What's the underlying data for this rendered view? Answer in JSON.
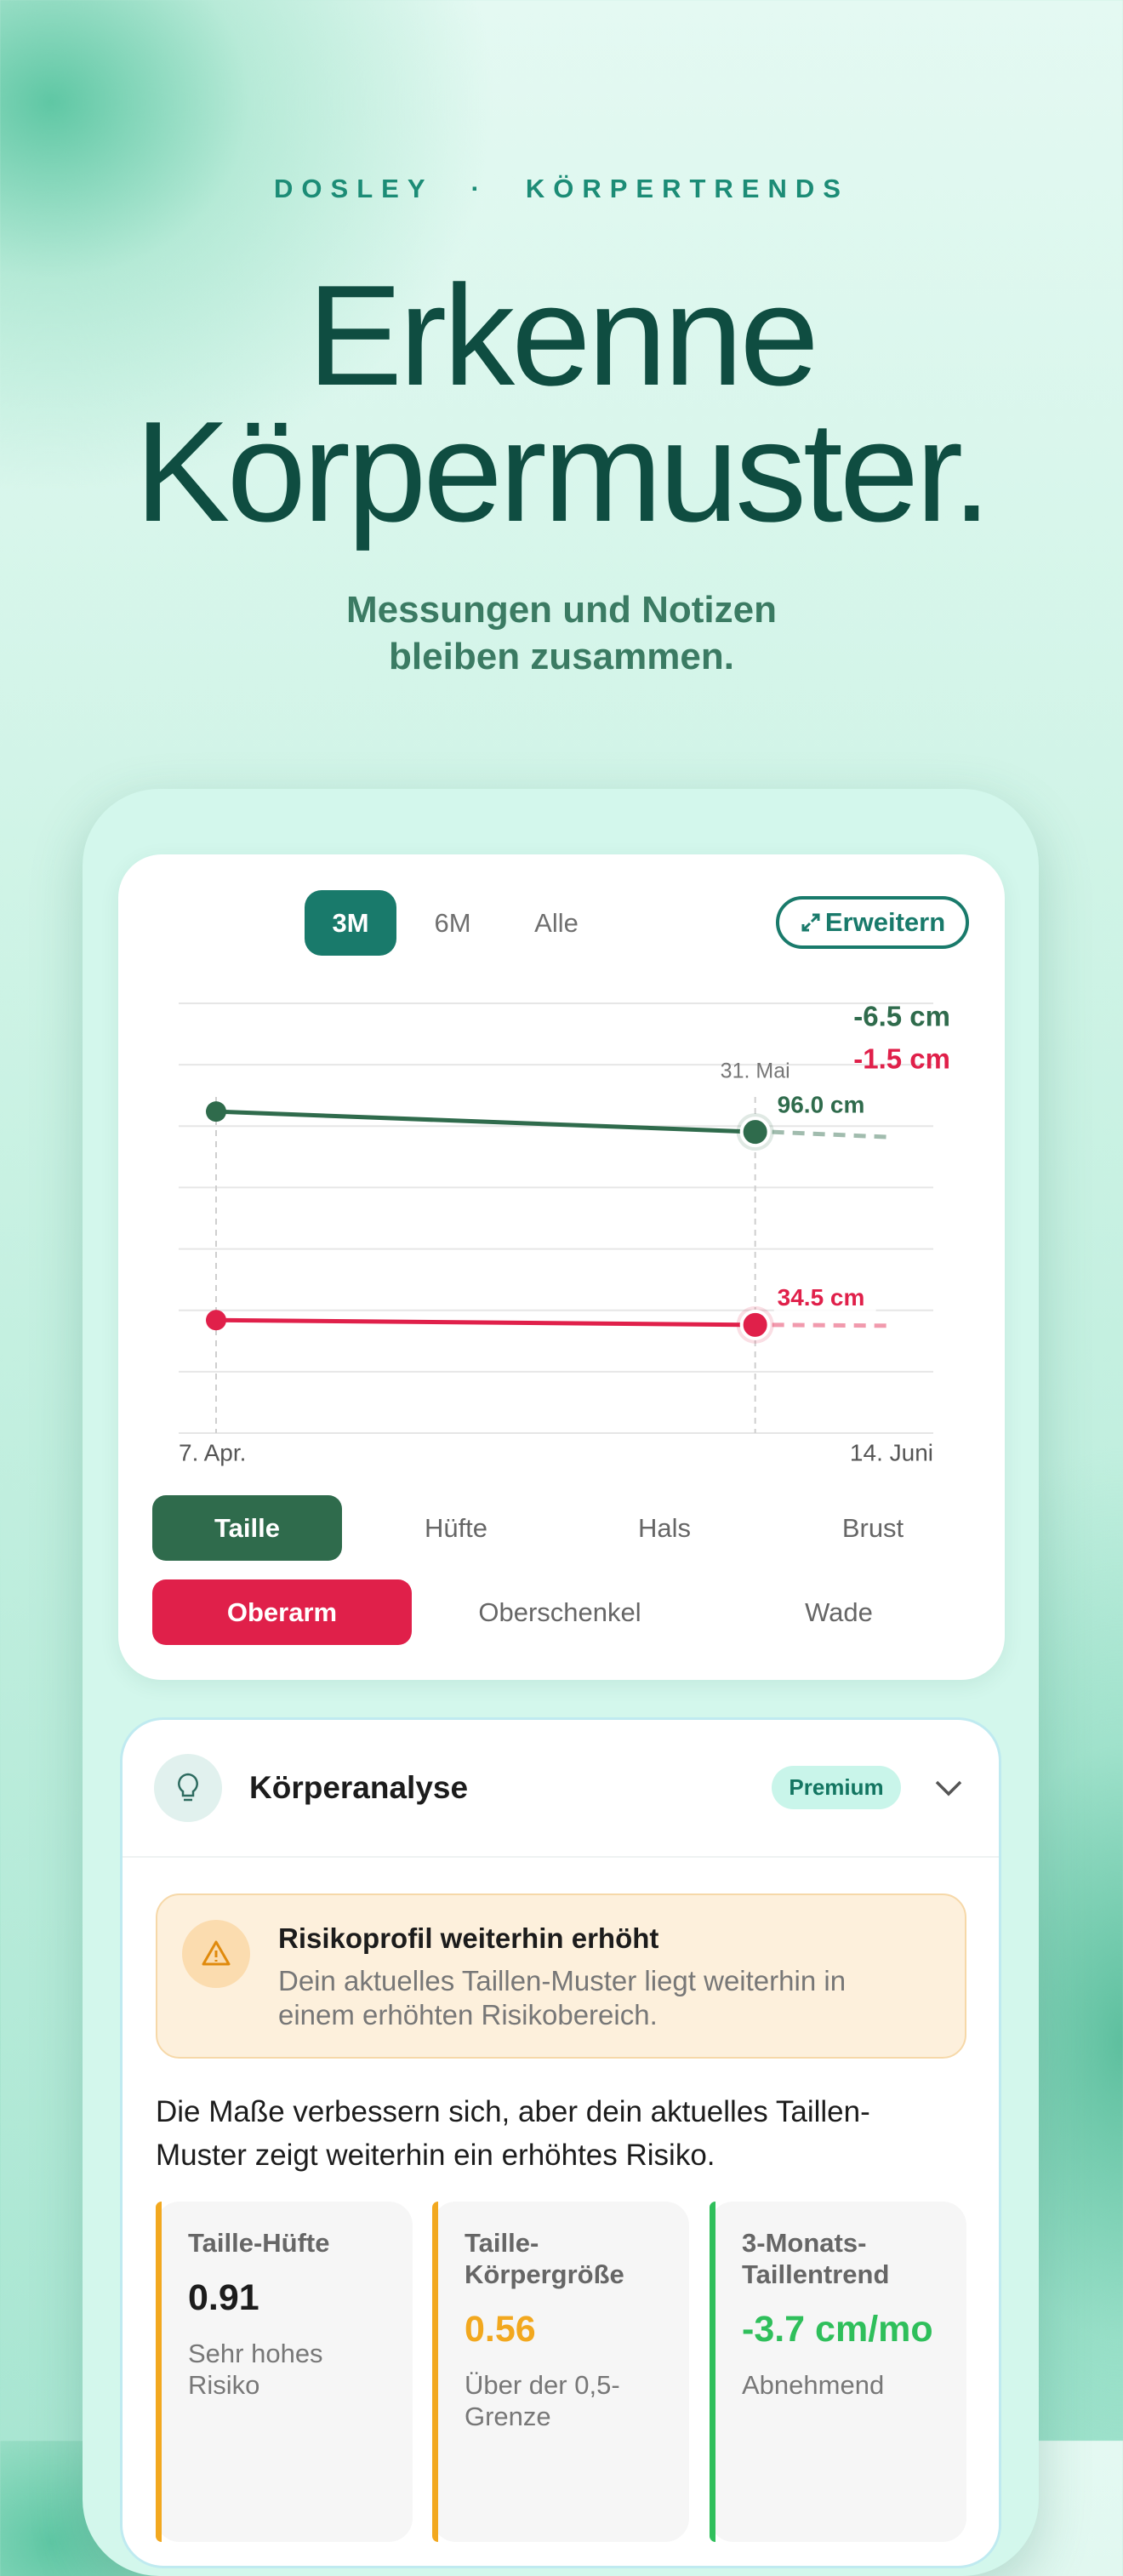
{
  "header": {
    "brand": "DOSLEY",
    "separator": "·",
    "section": "KÖRPERTRENDS",
    "title_line1": "Erkenne",
    "title_line2": "Körpermuster.",
    "subtitle_line1": "Messungen und Notizen",
    "subtitle_line2": "bleiben zusammen."
  },
  "chart_card": {
    "ranges": [
      "3M",
      "6M",
      "Alle"
    ],
    "expand": "Erweitern",
    "measures_row1": [
      "Hüfte",
      "Hals",
      "Brust"
    ],
    "measures_row2": [
      "Oberschenkel",
      "Wade"
    ]
  },
  "chart_data": {
    "type": "line",
    "x": [
      "7. Apr.",
      "31. Mai"
    ],
    "x_end_label": "14. Juni",
    "ylim": [
      0,
      137
    ],
    "series": [
      {
        "name": "Taille",
        "color": "#2f6b4c",
        "values": [
          102.5,
          96.0
        ],
        "value_labels": [
          null,
          "96.0 cm"
        ],
        "change": -6.5,
        "change_label": "-6.5 cm"
      },
      {
        "name": "Oberarm",
        "color": "#e0204a",
        "values": [
          36.0,
          34.5
        ],
        "value_labels": [
          null,
          "34.5 cm"
        ],
        "change": -1.5,
        "change_label": "-1.5 cm"
      }
    ]
  },
  "analysis": {
    "title": "Körperanalyse",
    "badge": "Premium",
    "alert_title": "Risikoprofil weiterhin erhöht",
    "alert_body": "Dein aktuelles Taillen-Muster liegt weiterhin in einem erhöhten Risikobereich.",
    "paragraph": "Die Maße verbessern sich, aber dein aktuelles Taillen-Muster zeigt weiterhin ein erhöhtes Risiko.",
    "metrics": [
      {
        "label": "Taille-Hüfte",
        "value": "0.91",
        "note": "Sehr hohes Risiko"
      },
      {
        "label": "Taille-Körpergröße",
        "value": "0.56",
        "note": "Über der 0,5-Grenze"
      },
      {
        "label": "3-Monats-Taillentrend",
        "value": "-3.7 cm/mo",
        "note": "Abnehmend"
      }
    ]
  }
}
